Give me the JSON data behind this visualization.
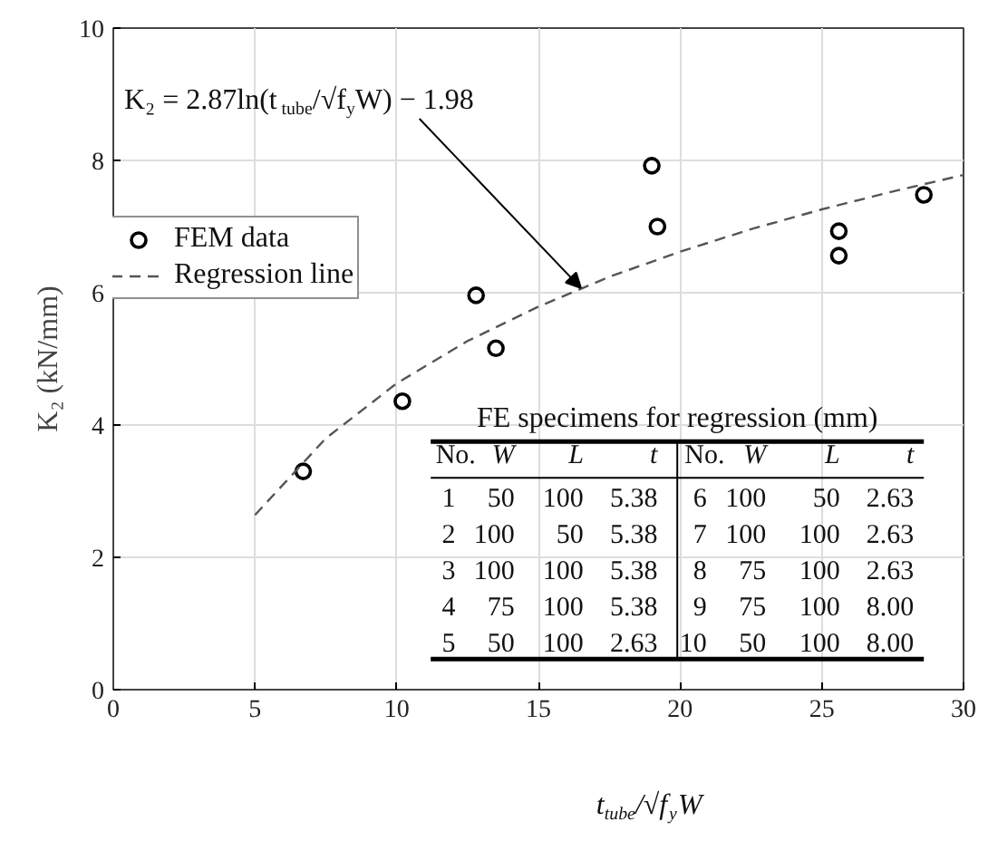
{
  "chart_data": {
    "type": "scatter",
    "xlabel": "t$_{tube}$/√f$_{y}$W",
    "ylabel": "K₂ (kN/mm)",
    "xlim": [
      0,
      30
    ],
    "ylim": [
      0,
      10
    ],
    "xticks": [
      0,
      5,
      10,
      15,
      20,
      25,
      30
    ],
    "yticks": [
      0,
      2,
      4,
      6,
      8,
      10
    ],
    "grid": true,
    "legend": "top left",
    "series": [
      {
        "name": "FEM data",
        "type": "scatter",
        "marker": "circle",
        "color": "#000000",
        "x": [
          6.7,
          10.2,
          12.8,
          13.5,
          19.0,
          19.2,
          25.6,
          25.6,
          28.6
        ],
        "values": [
          3.3,
          4.36,
          5.96,
          5.16,
          7.92,
          7.0,
          6.93,
          6.56,
          7.48
        ]
      },
      {
        "name": "Regression line",
        "type": "line",
        "line_style": "dashed",
        "color": "#555555",
        "x": [
          5,
          7.5,
          10,
          12.5,
          15,
          17.5,
          20,
          22.5,
          25,
          27.5,
          30
        ],
        "values": [
          2.64,
          3.8,
          4.63,
          5.27,
          5.79,
          6.24,
          6.62,
          6.96,
          7.26,
          7.53,
          7.78
        ]
      }
    ],
    "annotations": [
      {
        "text": "K₂ = 2.87ln(t$_{tube}$/√f$_{y}$W) − 1.98",
        "x": 16.5,
        "y": 6.07
      },
      "FE specimens for regression (mm)",
      "No. W L t No. W L t",
      "1 50 100 5.38 6 100 50 2.63",
      "2 100 50 5.38 7 100 100 2.63",
      "3 100 100 5.38 8 75 100 2.63",
      "4 75 100 5.38 9 75 100 8.00",
      "5 50 100 2.63 10 50 100 8.00"
    ]
  }
}
